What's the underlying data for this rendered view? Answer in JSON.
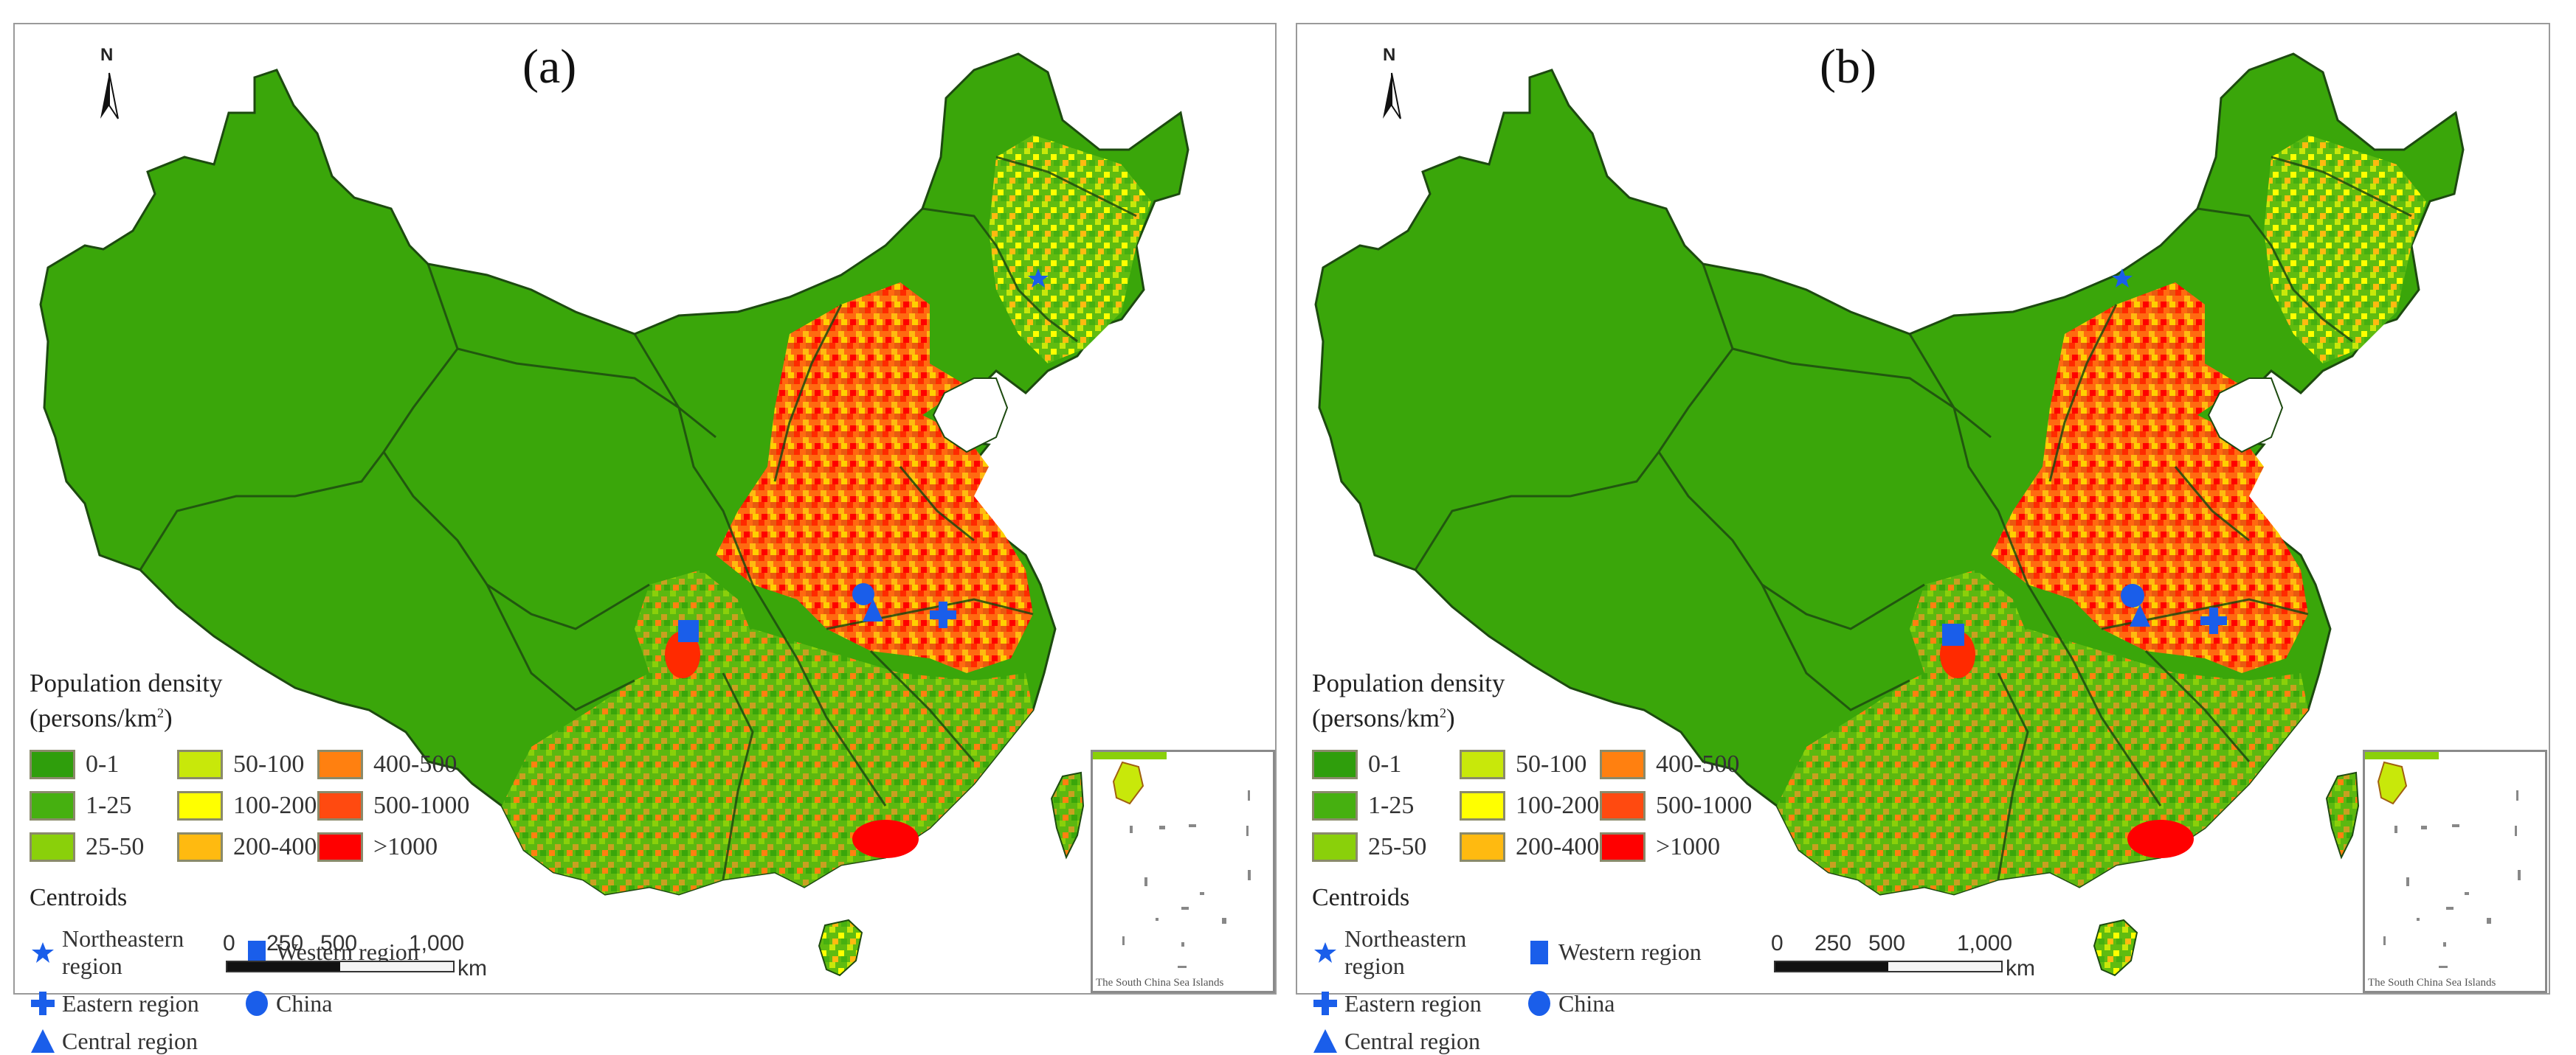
{
  "figure": {
    "panels": [
      {
        "id": "a",
        "title": "(a)",
        "north_arrow_label": "N",
        "legend": {
          "title": "Population density",
          "unit_prefix": "(persons/km",
          "unit_sup": "2",
          "unit_suffix": ")",
          "classes": [
            {
              "label": "0-1",
              "color": "#2f9e0c"
            },
            {
              "label": "50-100",
              "color": "#c8e80a"
            },
            {
              "label": "400-500",
              "color": "#ff8010"
            },
            {
              "label": "1-25",
              "color": "#46b010"
            },
            {
              "label": "100-200",
              "color": "#ffff00"
            },
            {
              "label": "500-1000",
              "color": "#ff4a10"
            },
            {
              "label": "25-50",
              "color": "#8ad00a"
            },
            {
              "label": "200-400",
              "color": "#ffba10"
            },
            {
              "label": ">1000",
              "color": "#ff0000"
            }
          ],
          "centroids_title": "Centroids",
          "centroids": [
            {
              "label": "Northeastern region",
              "shape": "star"
            },
            {
              "label": "Western region",
              "shape": "square"
            },
            {
              "label": "Eastern region",
              "shape": "cross"
            },
            {
              "label": "China",
              "shape": "circle"
            },
            {
              "label": "Central region",
              "shape": "triangle"
            }
          ]
        },
        "scale_bar": {
          "ticks": [
            "0",
            "250",
            "500",
            "1,000"
          ],
          "unit": "km"
        },
        "inset_label": "The South China Sea Islands"
      },
      {
        "id": "b",
        "title": "(b)",
        "north_arrow_label": "N",
        "legend": {
          "title": "Population density",
          "unit_prefix": "(persons/km",
          "unit_sup": "2",
          "unit_suffix": ")",
          "classes": [
            {
              "label": "0-1",
              "color": "#2f9e0c"
            },
            {
              "label": "50-100",
              "color": "#c8e80a"
            },
            {
              "label": "400-500",
              "color": "#ff8010"
            },
            {
              "label": "1-25",
              "color": "#46b010"
            },
            {
              "label": "100-200",
              "color": "#ffff00"
            },
            {
              "label": "500-1000",
              "color": "#ff4a10"
            },
            {
              "label": "25-50",
              "color": "#8ad00a"
            },
            {
              "label": "200-400",
              "color": "#ffba10"
            },
            {
              "label": ">1000",
              "color": "#ff0000"
            }
          ],
          "centroids_title": "Centroids",
          "centroids": [
            {
              "label": "Northeastern region",
              "shape": "star"
            },
            {
              "label": "Western region",
              "shape": "square"
            },
            {
              "label": "Eastern region",
              "shape": "cross"
            },
            {
              "label": "China",
              "shape": "circle"
            },
            {
              "label": "Central region",
              "shape": "triangle"
            }
          ]
        },
        "scale_bar": {
          "ticks": [
            "0",
            "250",
            "500",
            "1,000"
          ],
          "unit": "km"
        },
        "inset_label": "The South China Sea Islands"
      }
    ],
    "colors": {
      "marker_blue": "#1a5eea",
      "base_green": "#3aa60a",
      "boundary": "#1d4a10",
      "frame": "#9a9a9a"
    }
  }
}
